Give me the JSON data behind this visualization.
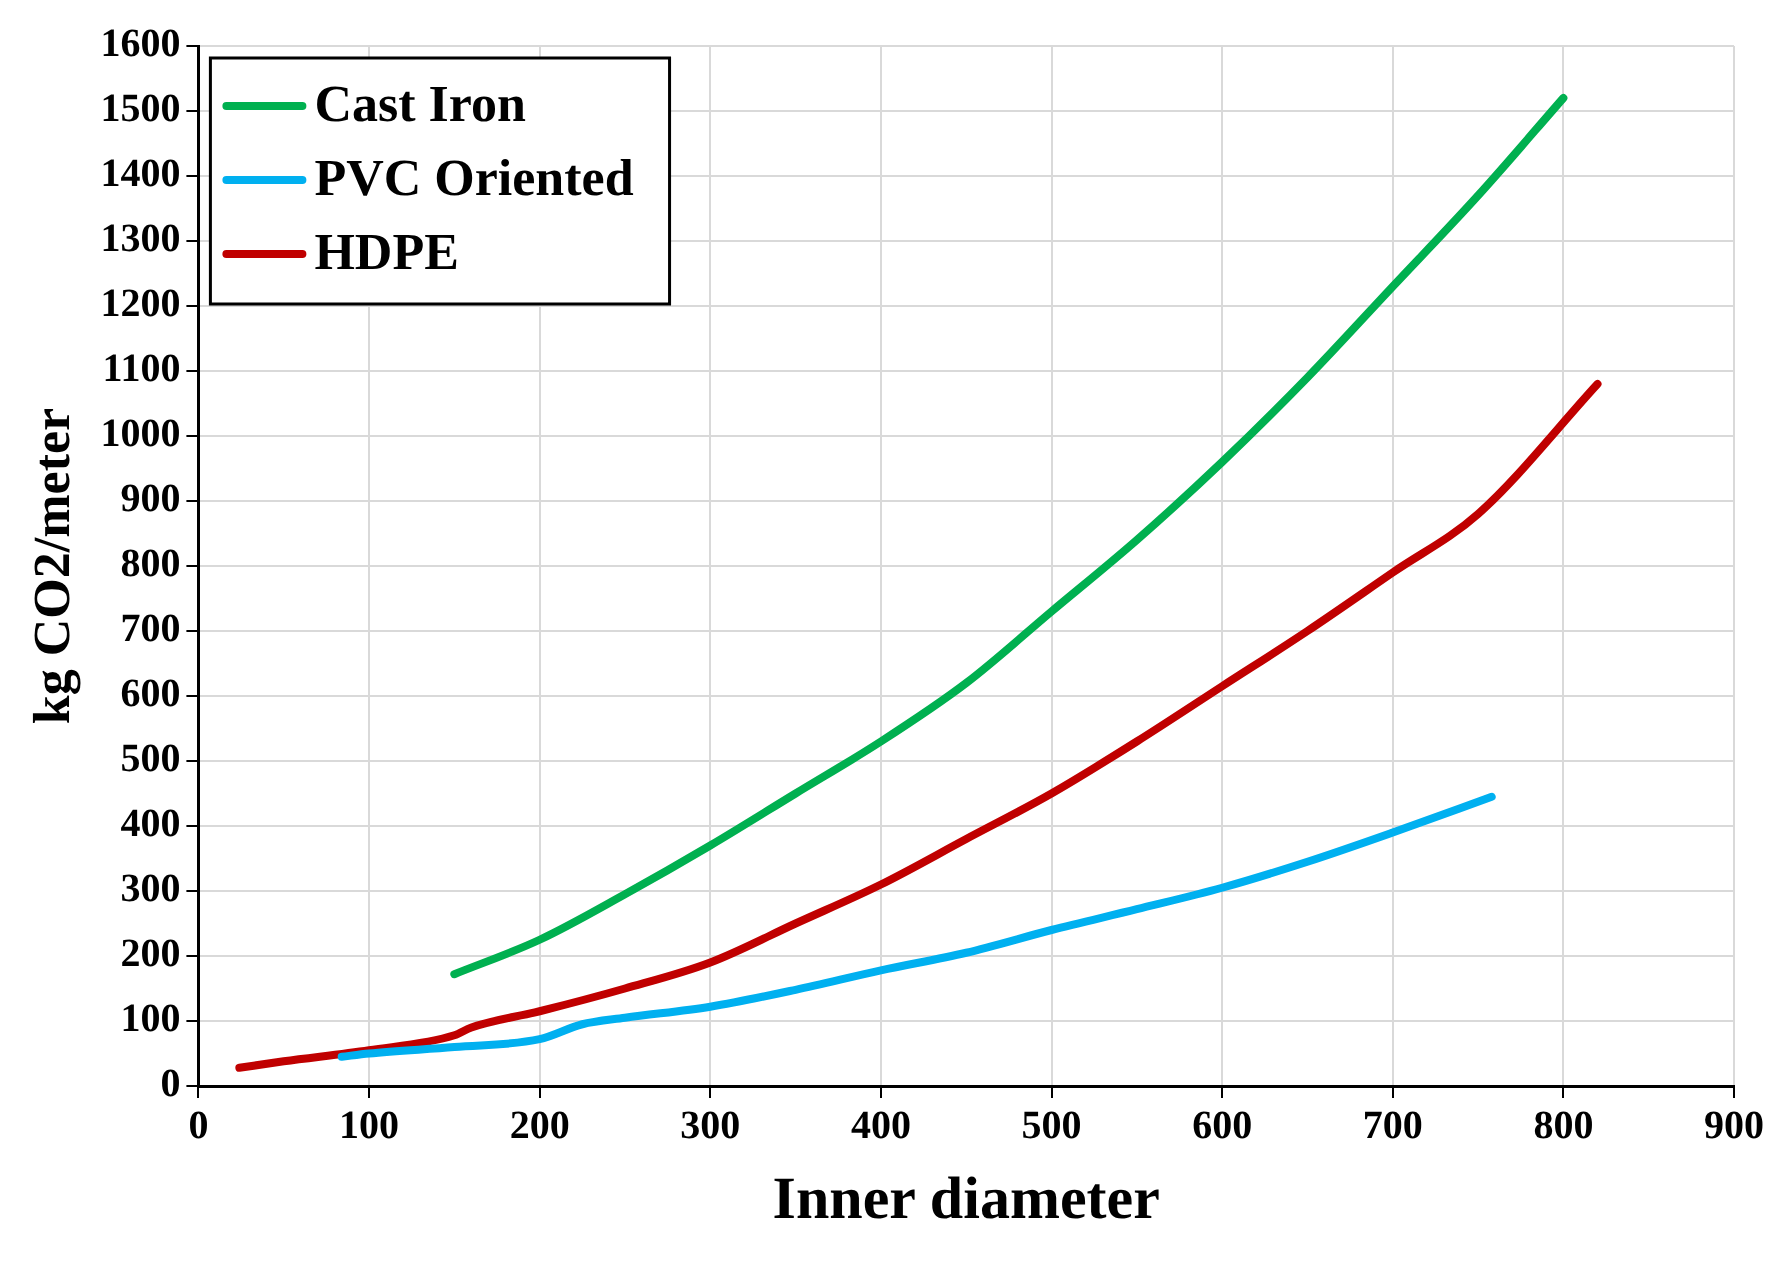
{
  "chart_data": {
    "type": "line",
    "xlabel": "Inner diameter",
    "ylabel": "kg CO2/meter",
    "xlim": [
      0,
      900
    ],
    "xticks": [
      0,
      100,
      200,
      300,
      400,
      500,
      600,
      700,
      800,
      900
    ],
    "ylim": [
      0,
      1600
    ],
    "yticks": [
      0,
      100,
      200,
      300,
      400,
      500,
      600,
      700,
      800,
      900,
      1000,
      1100,
      1200,
      1300,
      1400,
      1500,
      1600
    ],
    "grid": true,
    "legend": "top left",
    "marker": "none",
    "line_style": "solid",
    "series": [
      {
        "name": "Cast Iron",
        "color": "#00b050",
        "x": [
          150,
          200,
          250,
          300,
          350,
          400,
          450,
          500,
          550,
          600,
          650,
          700,
          750,
          800
        ],
        "values": [
          172,
          225,
          295,
          370,
          450,
          530,
          620,
          730,
          840,
          960,
          1090,
          1230,
          1370,
          1520
        ]
      },
      {
        "name": "PVC Oriented",
        "color": "#00b0f0",
        "x": [
          84,
          100,
          150,
          200,
          225,
          250,
          300,
          350,
          400,
          450,
          500,
          550,
          600,
          650,
          700,
          758
        ],
        "values": [
          45,
          50,
          60,
          72,
          95,
          105,
          122,
          148,
          178,
          205,
          240,
          272,
          305,
          345,
          390,
          445
        ]
      },
      {
        "name": "HDPE",
        "color": "#c00000",
        "x": [
          24,
          50,
          100,
          150,
          160,
          200,
          250,
          300,
          350,
          400,
          450,
          500,
          550,
          600,
          650,
          700,
          750,
          820
        ],
        "values": [
          28,
          38,
          55,
          78,
          90,
          115,
          150,
          190,
          250,
          310,
          380,
          450,
          530,
          615,
          700,
          790,
          880,
          1080
        ]
      }
    ]
  }
}
